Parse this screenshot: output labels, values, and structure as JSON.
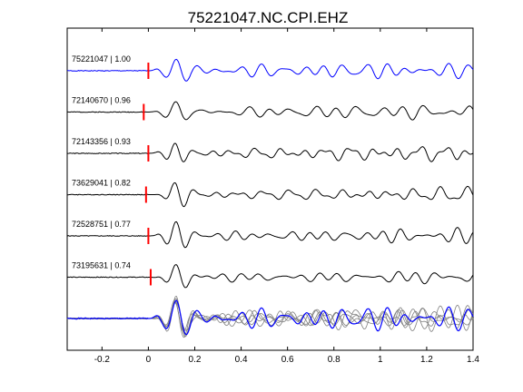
{
  "chart_data": {
    "type": "line",
    "title": "75221047.NC.CPI.EHZ",
    "xlabel": "",
    "ylabel": "",
    "xlim": [
      -0.35,
      1.4
    ],
    "xticks": [
      -0.2,
      0,
      0.2,
      0.4,
      0.6,
      0.8,
      1,
      1.2,
      1.4
    ],
    "xtick_labels": [
      "-0.2",
      "0",
      "0.2",
      "0.4",
      "0.6",
      "0.8",
      "1",
      "1.2",
      "1.4"
    ],
    "grid": false,
    "legend": false,
    "colors": {
      "master": "#0000ff",
      "trace": "#000000",
      "pick": "#ff0000",
      "overlay": "#808080"
    },
    "series": [
      {
        "name": "75221047 | 1.00",
        "color": "#0000ff",
        "pick_time": 0.0,
        "seed": 1,
        "amp": 1.0
      },
      {
        "name": "72140670 | 0.96",
        "color": "#000000",
        "pick_time": -0.02,
        "seed": 2,
        "amp": 0.95
      },
      {
        "name": "72143356 | 0.93",
        "color": "#000000",
        "pick_time": 0.0,
        "seed": 3,
        "amp": 1.0
      },
      {
        "name": "73629041 | 0.82",
        "color": "#000000",
        "pick_time": -0.01,
        "seed": 4,
        "amp": 0.95
      },
      {
        "name": "72528751 | 0.77",
        "color": "#000000",
        "pick_time": 0.0,
        "seed": 5,
        "amp": 1.0
      },
      {
        "name": "73195631 | 0.74",
        "color": "#000000",
        "pick_time": 0.01,
        "seed": 6,
        "amp": 0.95
      }
    ],
    "stack": {
      "label": "",
      "color": "#0000ff",
      "overlay_color": "#808080"
    }
  }
}
